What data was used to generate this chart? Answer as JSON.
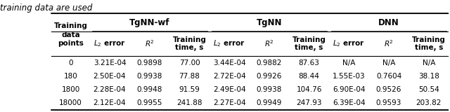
{
  "title_above": "training data are used",
  "col_groups": [
    {
      "label": "TgNN-wf",
      "cols": 3
    },
    {
      "label": "TgNN",
      "cols": 3
    },
    {
      "label": "DNN",
      "cols": 3
    }
  ],
  "row_header_lines": [
    "Training",
    "data",
    "points"
  ],
  "sub_headers": [
    "L2 error",
    "R2",
    "Training\ntime, s",
    "L2 error",
    "R2",
    "Training\ntime, s",
    "L2 error",
    "R2",
    "Training\ntime, s"
  ],
  "rows": [
    [
      "0",
      "3.21E-04",
      "0.9898",
      "77.00",
      "3.44E-04",
      "0.9882",
      "87.63",
      "N/A",
      "N/A",
      "N/A"
    ],
    [
      "180",
      "2.50E-04",
      "0.9938",
      "77.88",
      "2.72E-04",
      "0.9926",
      "88.44",
      "1.55E-03",
      "0.7604",
      "38.18"
    ],
    [
      "1800",
      "2.28E-04",
      "0.9948",
      "91.59",
      "2.49E-04",
      "0.9938",
      "104.76",
      "6.90E-04",
      "0.9526",
      "50.54"
    ],
    [
      "18000",
      "2.12E-04",
      "0.9955",
      "241.88",
      "2.27E-04",
      "0.9949",
      "247.93",
      "6.39E-04",
      "0.9593",
      "203.82"
    ]
  ],
  "background": "#ffffff",
  "text_color": "#000000",
  "line_color": "#000000",
  "font_size": 7.5,
  "header_font_size": 8.5,
  "title_font_size": 8.5
}
